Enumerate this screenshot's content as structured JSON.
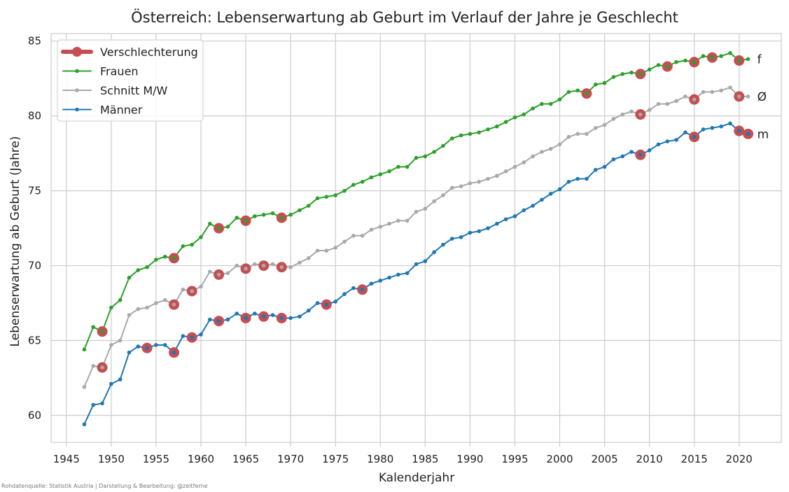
{
  "chart_data": {
    "type": "line",
    "title": "Österreich: Lebenserwartung ab Geburt im Verlauf der Jahre je Geschlecht",
    "xlabel": "Kalenderjahr",
    "ylabel": "Lebenserwartung ab Geburt (Jahre)",
    "xlim": [
      1943.3,
      2024.7
    ],
    "ylim": [
      58.2,
      85.5
    ],
    "xticks": [
      1945,
      1950,
      1955,
      1960,
      1965,
      1970,
      1975,
      1980,
      1985,
      1990,
      1995,
      2000,
      2005,
      2010,
      2015,
      2020
    ],
    "yticks": [
      60,
      65,
      70,
      75,
      80,
      85
    ],
    "grid": true,
    "legend_position": "top-left",
    "years": [
      1947,
      1948,
      1949,
      1950,
      1951,
      1952,
      1953,
      1954,
      1955,
      1956,
      1957,
      1958,
      1959,
      1960,
      1961,
      1962,
      1963,
      1964,
      1965,
      1966,
      1967,
      1968,
      1969,
      1970,
      1971,
      1972,
      1973,
      1974,
      1975,
      1976,
      1977,
      1978,
      1979,
      1980,
      1981,
      1982,
      1983,
      1984,
      1985,
      1986,
      1987,
      1988,
      1989,
      1990,
      1991,
      1992,
      1993,
      1994,
      1995,
      1996,
      1997,
      1998,
      1999,
      2000,
      2001,
      2002,
      2003,
      2004,
      2005,
      2006,
      2007,
      2008,
      2009,
      2010,
      2011,
      2012,
      2013,
      2014,
      2015,
      2016,
      2017,
      2018,
      2019,
      2020,
      2021
    ],
    "series": [
      {
        "name": "Frauen",
        "end_label": "f",
        "color": "#2ca02c",
        "values": [
          64.4,
          65.9,
          65.6,
          67.2,
          67.7,
          69.2,
          69.7,
          69.9,
          70.4,
          70.6,
          70.5,
          71.3,
          71.4,
          71.9,
          72.8,
          72.5,
          72.6,
          73.2,
          73.0,
          73.3,
          73.4,
          73.5,
          73.2,
          73.4,
          73.7,
          74.0,
          74.5,
          74.6,
          74.7,
          75.0,
          75.4,
          75.6,
          75.9,
          76.1,
          76.3,
          76.6,
          76.6,
          77.2,
          77.3,
          77.6,
          78.0,
          78.5,
          78.7,
          78.8,
          78.9,
          79.1,
          79.3,
          79.6,
          79.9,
          80.1,
          80.5,
          80.8,
          80.8,
          81.1,
          81.6,
          81.7,
          81.5,
          82.1,
          82.2,
          82.6,
          82.8,
          82.9,
          82.8,
          83.1,
          83.4,
          83.3,
          83.6,
          83.7,
          83.6,
          84.0,
          83.9,
          84.0,
          84.2,
          83.7,
          83.8
        ]
      },
      {
        "name": "Schnitt M/W",
        "end_label": "Ø",
        "color": "#a9a9a9",
        "values": [
          61.9,
          63.3,
          63.2,
          64.7,
          65.0,
          66.7,
          67.1,
          67.2,
          67.5,
          67.7,
          67.4,
          68.4,
          68.3,
          68.6,
          69.6,
          69.4,
          69.5,
          70.0,
          69.8,
          70.1,
          70.0,
          70.1,
          69.9,
          69.9,
          70.2,
          70.5,
          71.0,
          71.0,
          71.2,
          71.6,
          72.0,
          72.0,
          72.4,
          72.6,
          72.8,
          73.0,
          73.0,
          73.6,
          73.8,
          74.3,
          74.7,
          75.2,
          75.3,
          75.5,
          75.6,
          75.8,
          76.0,
          76.3,
          76.6,
          76.9,
          77.3,
          77.6,
          77.8,
          78.1,
          78.6,
          78.8,
          78.8,
          79.2,
          79.4,
          79.8,
          80.1,
          80.3,
          80.1,
          80.4,
          80.8,
          80.8,
          81.0,
          81.3,
          81.1,
          81.6,
          81.6,
          81.7,
          81.9,
          81.3,
          81.3
        ]
      },
      {
        "name": "Männer",
        "end_label": "m",
        "color": "#1f77b4",
        "values": [
          59.4,
          60.7,
          60.8,
          62.1,
          62.4,
          64.2,
          64.6,
          64.5,
          64.7,
          64.7,
          64.2,
          65.3,
          65.2,
          65.4,
          66.4,
          66.3,
          66.4,
          66.8,
          66.5,
          66.8,
          66.6,
          66.7,
          66.5,
          66.5,
          66.6,
          67.0,
          67.5,
          67.4,
          67.6,
          68.1,
          68.5,
          68.4,
          68.8,
          69.0,
          69.2,
          69.4,
          69.5,
          70.1,
          70.3,
          70.9,
          71.4,
          71.8,
          71.9,
          72.2,
          72.3,
          72.5,
          72.8,
          73.1,
          73.3,
          73.7,
          74.0,
          74.4,
          74.8,
          75.1,
          75.6,
          75.8,
          75.8,
          76.4,
          76.6,
          77.1,
          77.3,
          77.6,
          77.4,
          77.7,
          78.1,
          78.3,
          78.4,
          78.9,
          78.6,
          79.1,
          79.2,
          79.3,
          79.5,
          79.0,
          78.8
        ]
      }
    ],
    "legend": [
      {
        "label": "Verschlechterung",
        "color": "#c44e52",
        "style": "thick-line-dot"
      },
      {
        "label": "Frauen",
        "color": "#2ca02c",
        "style": "line-dot"
      },
      {
        "label": "Schnitt M/W",
        "color": "#a9a9a9",
        "style": "line-dot"
      },
      {
        "label": "Männer",
        "color": "#1f77b4",
        "style": "line-dot"
      }
    ],
    "highlight_color": "#c44e52",
    "annotation_source": "Rohdatenquelle: Statistik Austria | Darstellung & Bearbeitung: @zeitferne"
  }
}
